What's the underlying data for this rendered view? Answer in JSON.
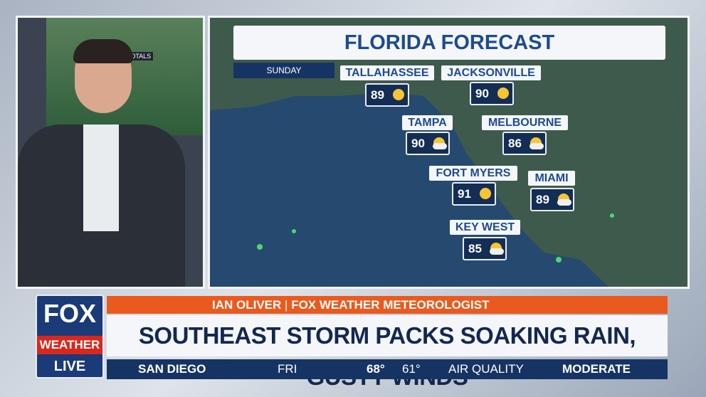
{
  "monitor": {
    "label": "TOTALS"
  },
  "map": {
    "title": "FLORIDA FORECAST",
    "day": "SUNDAY",
    "cities": [
      {
        "name": "TALLAHASSEE",
        "temp": 89
      },
      {
        "name": "JACKSONVILLE",
        "temp": 90
      },
      {
        "name": "TAMPA",
        "temp": 90
      },
      {
        "name": "MELBOURNE",
        "temp": 86
      },
      {
        "name": "FORT MYERS",
        "temp": 91
      },
      {
        "name": "MIAMI",
        "temp": 89
      },
      {
        "name": "KEY WEST",
        "temp": 85
      }
    ]
  },
  "logo": {
    "top": "FOX",
    "middle": "WEATHER",
    "bottom": "LIVE"
  },
  "lower_third": {
    "name": "IAN OLIVER",
    "separator": "|",
    "role": "FOX WEATHER METEOROLOGIST",
    "headline": "SOUTHEAST STORM PACKS SOAKING RAIN, GUSTY WINDS"
  },
  "ticker": {
    "location": "SAN DIEGO",
    "day": "FRI",
    "high": "68°",
    "low": "61°",
    "air_label": "AIR QUALITY",
    "air_value": "MODERATE"
  }
}
